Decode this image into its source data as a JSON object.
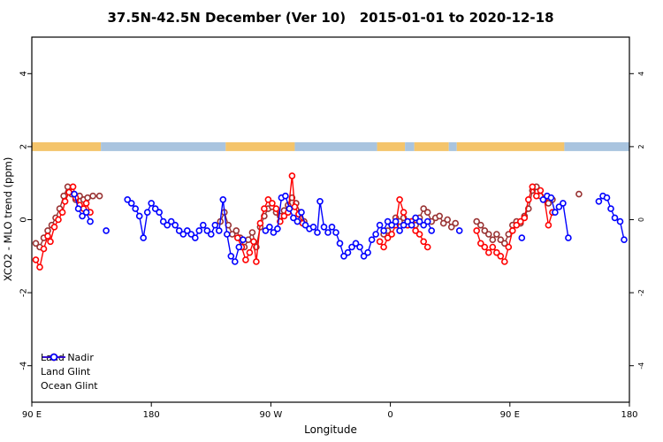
{
  "title_bar": {
    "title": "37.5N-42.5N December (Ver 10)   2015-01-01 to 2020-12-18"
  },
  "chart_data": {
    "type": "line",
    "title": "37.5N-42.5N December (Ver 10)   2015-01-01 to 2020-12-18",
    "xlabel": "Longitude",
    "ylabel": "XCO2 - MLO trend (ppm)",
    "xlim": [
      90,
      540
    ],
    "ylim": [
      -5,
      5
    ],
    "grid": false,
    "legend_position": "bottom-left",
    "x_ticks": [
      {
        "value": 90,
        "label": "90 E"
      },
      {
        "value": 180,
        "label": "180"
      },
      {
        "value": 270,
        "label": "90 W"
      },
      {
        "value": 360,
        "label": "0"
      },
      {
        "value": 450,
        "label": "90 E"
      },
      {
        "value": 540,
        "label": "180"
      }
    ],
    "y_ticks": [
      -4,
      -2,
      0,
      2,
      4
    ],
    "map_band": {
      "y": 2,
      "land_color": "#F4C46B",
      "ocean_color": "#A9C4DF",
      "segments": [
        {
          "from": 90,
          "to": 142,
          "type": "land"
        },
        {
          "from": 142,
          "to": 236,
          "type": "ocean"
        },
        {
          "from": 236,
          "to": 288,
          "type": "land"
        },
        {
          "from": 288,
          "to": 350,
          "type": "ocean"
        },
        {
          "from": 350,
          "to": 371,
          "type": "land"
        },
        {
          "from": 371,
          "to": 378,
          "type": "ocean"
        },
        {
          "from": 378,
          "to": 404,
          "type": "land"
        },
        {
          "from": 404,
          "to": 410,
          "type": "ocean"
        },
        {
          "from": 410,
          "to": 491,
          "type": "land"
        },
        {
          "from": 491,
          "to": 540,
          "type": "ocean"
        }
      ]
    },
    "series": [
      {
        "name": "Land Nadir",
        "color": "#993333",
        "segments": [
          [
            [
              93,
              -0.65
            ],
            [
              96,
              -0.75
            ],
            [
              99,
              -0.5
            ],
            [
              102,
              -0.3
            ],
            [
              105,
              -0.15
            ],
            [
              108,
              0.05
            ],
            [
              111,
              0.3
            ],
            [
              114,
              0.65
            ],
            [
              117,
              0.9
            ],
            [
              120,
              0.7
            ],
            [
              123,
              0.55
            ],
            [
              126,
              0.65
            ],
            [
              129,
              0.55
            ],
            [
              132,
              0.6
            ],
            [
              136,
              0.65
            ],
            [
              141,
              0.65
            ]
          ],
          [
            [
              232,
              -0.05
            ],
            [
              235,
              0.2
            ],
            [
              238,
              -0.15
            ],
            [
              241,
              -0.4
            ],
            [
              244,
              -0.3
            ],
            [
              247,
              -0.5
            ],
            [
              250,
              -0.75
            ],
            [
              253,
              -0.55
            ],
            [
              256,
              -0.35
            ],
            [
              259,
              -0.75
            ],
            [
              262,
              -0.2
            ],
            [
              265,
              0.1
            ],
            [
              268,
              0.3
            ],
            [
              271,
              0.35
            ],
            [
              274,
              0.2
            ],
            [
              277,
              0.1
            ],
            [
              280,
              0.25
            ],
            [
              283,
              0.4
            ],
            [
              286,
              0.6
            ],
            [
              289,
              0.45
            ],
            [
              292,
              0.2
            ],
            [
              295,
              -0.05
            ]
          ],
          [
            [
              355,
              -0.4
            ],
            [
              358,
              -0.3
            ],
            [
              361,
              -0.15
            ],
            [
              364,
              0.05
            ],
            [
              367,
              -0.05
            ],
            [
              370,
              0.05
            ],
            [
              373,
              -0.15
            ],
            [
              376,
              -0.05
            ],
            [
              379,
              -0.15
            ],
            [
              382,
              0.05
            ],
            [
              385,
              0.3
            ],
            [
              388,
              0.2
            ],
            [
              391,
              -0.05
            ],
            [
              394,
              0.05
            ],
            [
              397,
              0.1
            ],
            [
              400,
              -0.1
            ],
            [
              403,
              0.0
            ],
            [
              406,
              -0.2
            ],
            [
              409,
              -0.1
            ]
          ],
          [
            [
              425,
              -0.05
            ],
            [
              428,
              -0.15
            ],
            [
              431,
              -0.3
            ],
            [
              434,
              -0.4
            ],
            [
              437,
              -0.55
            ],
            [
              440,
              -0.4
            ],
            [
              443,
              -0.55
            ],
            [
              446,
              -0.65
            ],
            [
              449,
              -0.4
            ],
            [
              452,
              -0.15
            ],
            [
              455,
              -0.05
            ],
            [
              458,
              -0.1
            ],
            [
              461,
              0.1
            ],
            [
              464,
              0.3
            ],
            [
              467,
              0.8
            ],
            [
              470,
              0.9
            ],
            [
              473,
              0.65
            ],
            [
              476,
              0.55
            ],
            [
              479,
              0.45
            ],
            [
              482,
              0.55
            ]
          ],
          [
            [
              502,
              0.7
            ]
          ]
        ]
      },
      {
        "name": "Land Glint",
        "color": "#FF0000",
        "segments": [
          [
            [
              93,
              -1.1
            ],
            [
              96,
              -1.3
            ],
            [
              99,
              -0.8
            ],
            [
              102,
              -0.45
            ],
            [
              104,
              -0.6
            ],
            [
              107,
              -0.2
            ],
            [
              110,
              0.0
            ],
            [
              113,
              0.2
            ],
            [
              115,
              0.5
            ],
            [
              118,
              0.75
            ],
            [
              121,
              0.9
            ],
            [
              123,
              0.6
            ],
            [
              126,
              0.4
            ],
            [
              129,
              0.3
            ],
            [
              131,
              0.45
            ],
            [
              134,
              0.2
            ]
          ],
          [
            [
              245,
              -0.5
            ],
            [
              248,
              -0.75
            ],
            [
              251,
              -1.1
            ],
            [
              254,
              -0.9
            ],
            [
              257,
              -0.6
            ],
            [
              259,
              -1.15
            ],
            [
              262,
              -0.1
            ],
            [
              265,
              0.3
            ],
            [
              268,
              0.55
            ],
            [
              271,
              0.45
            ],
            [
              274,
              0.3
            ],
            [
              277,
              -0.05
            ],
            [
              280,
              0.1
            ],
            [
              283,
              0.2
            ],
            [
              286,
              1.2
            ],
            [
              288,
              0.35
            ],
            [
              291,
              0.15
            ],
            [
              294,
              -0.1
            ]
          ],
          [
            [
              352,
              -0.6
            ],
            [
              355,
              -0.75
            ],
            [
              358,
              -0.5
            ],
            [
              361,
              -0.4
            ],
            [
              364,
              -0.15
            ],
            [
              367,
              0.55
            ],
            [
              370,
              0.2
            ],
            [
              373,
              -0.15
            ],
            [
              376,
              -0.05
            ],
            [
              379,
              -0.3
            ],
            [
              382,
              -0.4
            ],
            [
              385,
              -0.6
            ],
            [
              388,
              -0.75
            ]
          ],
          [
            [
              425,
              -0.3
            ],
            [
              428,
              -0.65
            ],
            [
              431,
              -0.75
            ],
            [
              434,
              -0.9
            ],
            [
              437,
              -0.75
            ],
            [
              440,
              -0.9
            ],
            [
              443,
              -1.0
            ],
            [
              446,
              -1.15
            ],
            [
              449,
              -0.75
            ],
            [
              452,
              -0.3
            ],
            [
              455,
              -0.15
            ],
            [
              458,
              -0.05
            ],
            [
              461,
              0.05
            ],
            [
              464,
              0.55
            ],
            [
              467,
              0.9
            ],
            [
              470,
              0.65
            ],
            [
              473,
              0.8
            ],
            [
              476,
              0.55
            ],
            [
              479,
              -0.15
            ],
            [
              482,
              0.2
            ]
          ]
        ]
      },
      {
        "name": "Ocean Glint",
        "color": "#0000FF",
        "segments": [
          [
            [
              122,
              0.7
            ],
            [
              125,
              0.3
            ],
            [
              128,
              0.1
            ],
            [
              131,
              0.2
            ],
            [
              134,
              -0.05
            ]
          ],
          [
            [
              146,
              -0.3
            ]
          ],
          [
            [
              162,
              0.55
            ],
            [
              165,
              0.45
            ],
            [
              168,
              0.3
            ],
            [
              171,
              0.1
            ],
            [
              174,
              -0.5
            ],
            [
              177,
              0.2
            ],
            [
              180,
              0.45
            ],
            [
              183,
              0.3
            ],
            [
              186,
              0.2
            ],
            [
              189,
              -0.05
            ],
            [
              192,
              -0.15
            ],
            [
              195,
              -0.05
            ],
            [
              198,
              -0.15
            ],
            [
              201,
              -0.3
            ],
            [
              204,
              -0.4
            ],
            [
              207,
              -0.3
            ],
            [
              210,
              -0.4
            ],
            [
              213,
              -0.5
            ],
            [
              216,
              -0.3
            ],
            [
              219,
              -0.15
            ],
            [
              222,
              -0.3
            ],
            [
              225,
              -0.4
            ],
            [
              228,
              -0.15
            ],
            [
              231,
              -0.3
            ],
            [
              234,
              0.55
            ],
            [
              237,
              -0.4
            ],
            [
              240,
              -1.0
            ],
            [
              243,
              -1.15
            ],
            [
              246,
              -0.75
            ],
            [
              249,
              -0.55
            ]
          ],
          [
            [
              266,
              -0.3
            ],
            [
              269,
              -0.2
            ],
            [
              272,
              -0.35
            ],
            [
              275,
              -0.25
            ],
            [
              278,
              0.6
            ],
            [
              281,
              0.65
            ],
            [
              284,
              0.3
            ],
            [
              287,
              0.05
            ],
            [
              290,
              -0.05
            ],
            [
              293,
              0.2
            ],
            [
              296,
              -0.15
            ],
            [
              299,
              -0.25
            ],
            [
              302,
              -0.2
            ],
            [
              305,
              -0.35
            ],
            [
              307,
              0.5
            ],
            [
              310,
              -0.2
            ],
            [
              313,
              -0.35
            ],
            [
              316,
              -0.2
            ],
            [
              319,
              -0.35
            ],
            [
              322,
              -0.65
            ],
            [
              325,
              -1.0
            ],
            [
              328,
              -0.9
            ],
            [
              331,
              -0.75
            ],
            [
              334,
              -0.65
            ],
            [
              337,
              -0.75
            ],
            [
              340,
              -1.0
            ],
            [
              343,
              -0.9
            ],
            [
              346,
              -0.55
            ],
            [
              349,
              -0.4
            ],
            [
              352,
              -0.15
            ],
            [
              355,
              -0.3
            ],
            [
              358,
              -0.05
            ],
            [
              361,
              -0.15
            ],
            [
              364,
              -0.05
            ],
            [
              367,
              -0.3
            ],
            [
              370,
              -0.15
            ],
            [
              373,
              -0.05
            ],
            [
              376,
              -0.15
            ],
            [
              379,
              0.05
            ],
            [
              382,
              -0.05
            ],
            [
              385,
              -0.15
            ],
            [
              388,
              -0.05
            ],
            [
              391,
              -0.3
            ]
          ],
          [
            [
              412,
              -0.3
            ]
          ],
          [
            [
              459,
              -0.5
            ]
          ],
          [
            [
              475,
              0.55
            ],
            [
              478,
              0.65
            ],
            [
              481,
              0.6
            ],
            [
              484,
              0.2
            ],
            [
              487,
              0.35
            ],
            [
              490,
              0.45
            ],
            [
              494,
              -0.5
            ]
          ],
          [
            [
              517,
              0.5
            ],
            [
              520,
              0.65
            ],
            [
              523,
              0.6
            ],
            [
              526,
              0.3
            ],
            [
              529,
              0.05
            ],
            [
              533,
              -0.05
            ],
            [
              536,
              -0.55
            ]
          ]
        ]
      }
    ]
  }
}
